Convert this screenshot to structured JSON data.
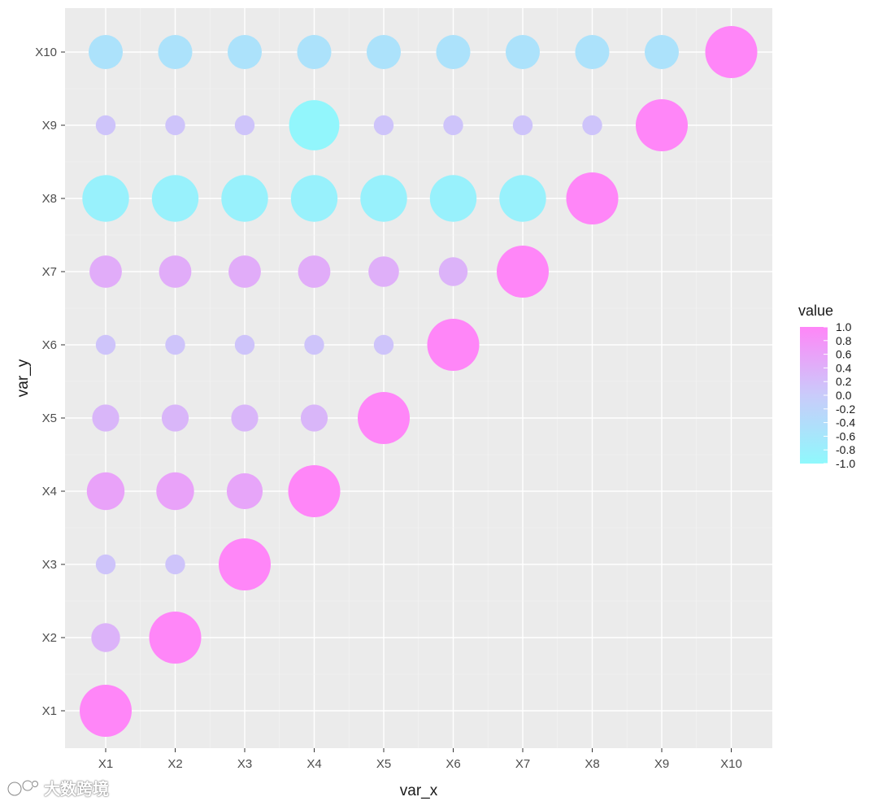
{
  "chart_data": {
    "type": "scatter",
    "subtype": "correlation-bubble-matrix",
    "xlabel": "var_x",
    "ylabel": "var_y",
    "categories_x": [
      "X1",
      "X2",
      "X3",
      "X4",
      "X5",
      "X6",
      "X7",
      "X8",
      "X9",
      "X10"
    ],
    "categories_y": [
      "X1",
      "X2",
      "X3",
      "X4",
      "X5",
      "X6",
      "X7",
      "X8",
      "X9",
      "X10"
    ],
    "grid": true,
    "legend": {
      "title": "value",
      "position": "right",
      "range": [
        -1.0,
        1.0
      ],
      "ticks": [
        "1.0",
        "0.8",
        "0.6",
        "0.4",
        "0.2",
        "0.0",
        "-0.2",
        "-0.4",
        "-0.6",
        "-0.8",
        "-1.0"
      ],
      "color_low": "#8ff8fc",
      "color_mid": "#c9cbfa",
      "color_high": "#ff86f8"
    },
    "points": [
      {
        "x": "X1",
        "y": "X1",
        "value": 1.0
      },
      {
        "x": "X1",
        "y": "X2",
        "value": 0.35
      },
      {
        "x": "X2",
        "y": "X2",
        "value": 1.0
      },
      {
        "x": "X1",
        "y": "X3",
        "value": 0.1
      },
      {
        "x": "X2",
        "y": "X3",
        "value": 0.1
      },
      {
        "x": "X3",
        "y": "X3",
        "value": 1.0
      },
      {
        "x": "X1",
        "y": "X4",
        "value": 0.6
      },
      {
        "x": "X2",
        "y": "X4",
        "value": 0.6
      },
      {
        "x": "X3",
        "y": "X4",
        "value": 0.55
      },
      {
        "x": "X4",
        "y": "X4",
        "value": 1.0
      },
      {
        "x": "X1",
        "y": "X5",
        "value": 0.3
      },
      {
        "x": "X2",
        "y": "X5",
        "value": 0.3
      },
      {
        "x": "X3",
        "y": "X5",
        "value": 0.3
      },
      {
        "x": "X4",
        "y": "X5",
        "value": 0.3
      },
      {
        "x": "X5",
        "y": "X5",
        "value": 1.0
      },
      {
        "x": "X1",
        "y": "X6",
        "value": 0.1
      },
      {
        "x": "X2",
        "y": "X6",
        "value": 0.1
      },
      {
        "x": "X3",
        "y": "X6",
        "value": 0.1
      },
      {
        "x": "X4",
        "y": "X6",
        "value": 0.1
      },
      {
        "x": "X5",
        "y": "X6",
        "value": 0.1
      },
      {
        "x": "X6",
        "y": "X6",
        "value": 1.0
      },
      {
        "x": "X1",
        "y": "X7",
        "value": 0.45
      },
      {
        "x": "X2",
        "y": "X7",
        "value": 0.45
      },
      {
        "x": "X3",
        "y": "X7",
        "value": 0.45
      },
      {
        "x": "X4",
        "y": "X7",
        "value": 0.45
      },
      {
        "x": "X5",
        "y": "X7",
        "value": 0.4
      },
      {
        "x": "X6",
        "y": "X7",
        "value": 0.35
      },
      {
        "x": "X7",
        "y": "X7",
        "value": 1.0
      },
      {
        "x": "X1",
        "y": "X8",
        "value": -0.85
      },
      {
        "x": "X2",
        "y": "X8",
        "value": -0.85
      },
      {
        "x": "X3",
        "y": "X8",
        "value": -0.85
      },
      {
        "x": "X4",
        "y": "X8",
        "value": -0.85
      },
      {
        "x": "X5",
        "y": "X8",
        "value": -0.85
      },
      {
        "x": "X6",
        "y": "X8",
        "value": -0.85
      },
      {
        "x": "X7",
        "y": "X8",
        "value": -0.85
      },
      {
        "x": "X8",
        "y": "X8",
        "value": 1.0
      },
      {
        "x": "X1",
        "y": "X9",
        "value": 0.1
      },
      {
        "x": "X2",
        "y": "X9",
        "value": 0.1
      },
      {
        "x": "X3",
        "y": "X9",
        "value": 0.1
      },
      {
        "x": "X4",
        "y": "X9",
        "value": -0.95
      },
      {
        "x": "X5",
        "y": "X9",
        "value": 0.1
      },
      {
        "x": "X6",
        "y": "X9",
        "value": 0.1
      },
      {
        "x": "X7",
        "y": "X9",
        "value": 0.1
      },
      {
        "x": "X8",
        "y": "X9",
        "value": 0.1
      },
      {
        "x": "X9",
        "y": "X9",
        "value": 1.0
      },
      {
        "x": "X1",
        "y": "X10",
        "value": -0.5
      },
      {
        "x": "X2",
        "y": "X10",
        "value": -0.5
      },
      {
        "x": "X3",
        "y": "X10",
        "value": -0.5
      },
      {
        "x": "X4",
        "y": "X10",
        "value": -0.5
      },
      {
        "x": "X5",
        "y": "X10",
        "value": -0.5
      },
      {
        "x": "X6",
        "y": "X10",
        "value": -0.5
      },
      {
        "x": "X7",
        "y": "X10",
        "value": -0.5
      },
      {
        "x": "X8",
        "y": "X10",
        "value": -0.5
      },
      {
        "x": "X9",
        "y": "X10",
        "value": -0.5
      },
      {
        "x": "X10",
        "y": "X10",
        "value": 1.0
      }
    ]
  },
  "watermark": {
    "text": "大数跨境"
  }
}
